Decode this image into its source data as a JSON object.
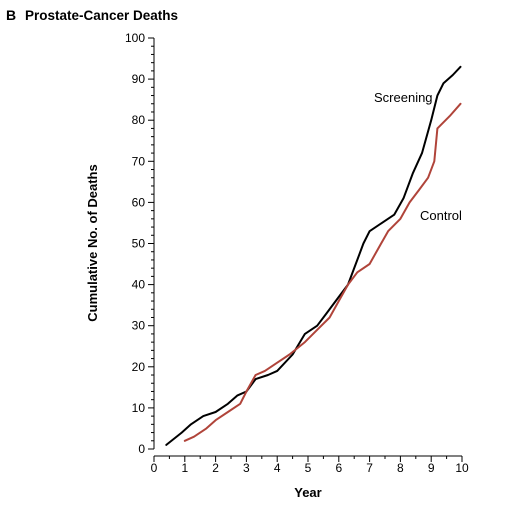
{
  "panel": {
    "letter": "B",
    "title": "Prostate-Cancer Deaths"
  },
  "chart_data": {
    "type": "line",
    "title": "Prostate-Cancer Deaths",
    "xlabel": "Year",
    "ylabel": "Cumulative No. of Deaths",
    "xlim": [
      0,
      10
    ],
    "ylim": [
      0,
      100
    ],
    "x_ticks": [
      "0",
      "1",
      "2",
      "3",
      "4",
      "5",
      "6",
      "7",
      "8",
      "9",
      "10"
    ],
    "y_ticks": [
      "0",
      "10",
      "20",
      "30",
      "40",
      "50",
      "60",
      "70",
      "80",
      "90",
      "100"
    ],
    "grid": false,
    "legend": "direct labels",
    "series": [
      {
        "name": "Screening",
        "color": "#000000",
        "x": [
          0.4,
          0.9,
          1.2,
          1.6,
          2.0,
          2.4,
          2.7,
          3.0,
          3.3,
          3.7,
          4.0,
          4.5,
          4.9,
          5.3,
          5.6,
          6.0,
          6.3,
          6.6,
          6.8,
          7.0,
          7.4,
          7.8,
          8.1,
          8.4,
          8.7,
          9.0,
          9.2,
          9.4,
          9.7,
          9.95
        ],
        "y": [
          1,
          4,
          6,
          8,
          9,
          11,
          13,
          14,
          17,
          18,
          19,
          23,
          28,
          30,
          33,
          37,
          40,
          46,
          50,
          53,
          55,
          57,
          61,
          67,
          72,
          80,
          86,
          89,
          91,
          93
        ]
      },
      {
        "name": "Control",
        "color": "#b0443a",
        "x": [
          1.0,
          1.3,
          1.7,
          2.0,
          2.4,
          2.8,
          3.0,
          3.3,
          3.6,
          4.0,
          4.4,
          4.9,
          5.3,
          5.7,
          6.0,
          6.3,
          6.6,
          7.0,
          7.3,
          7.6,
          8.0,
          8.3,
          8.6,
          8.9,
          9.1,
          9.2,
          9.6,
          9.95
        ],
        "y": [
          2,
          3,
          5,
          7,
          9,
          11,
          14,
          18,
          19,
          21,
          23,
          26,
          29,
          32,
          36,
          40,
          43,
          45,
          49,
          53,
          56,
          60,
          63,
          66,
          70,
          78,
          81,
          84
        ]
      }
    ]
  }
}
